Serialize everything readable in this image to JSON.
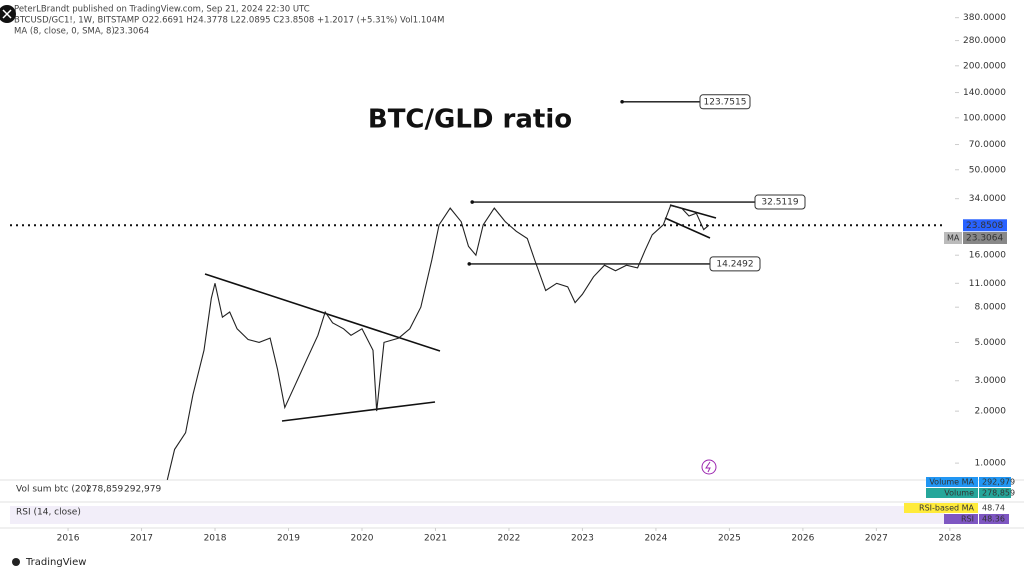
{
  "header": {
    "publisher": "PeterLBrandt published on TradingView.com, Sep 21, 2024 22:30 UTC",
    "symbol_line": "BTCUSD/GC1!, 1W, BITSTAMP  O22.6691  H24.3778  L22.0895  C23.8508  +1.2017 (+5.31%)  Vol1.104M",
    "ma_line": "MA (8, close, 0, SMA, 8)",
    "ma_line_value": 23.3064
  },
  "chart_data": {
    "type": "line",
    "title": "BTC/GLD ratio",
    "log_scale": true,
    "x": [
      2017.35,
      2017.45,
      2017.6,
      2017.7,
      2017.85,
      2017.95,
      2018.0,
      2018.1,
      2018.2,
      2018.3,
      2018.45,
      2018.6,
      2018.75,
      2018.85,
      2018.95,
      2019.1,
      2019.25,
      2019.4,
      2019.5,
      2019.6,
      2019.75,
      2019.85,
      2020.0,
      2020.15,
      2020.2,
      2020.3,
      2020.5,
      2020.65,
      2020.8,
      2020.95,
      2021.05,
      2021.2,
      2021.35,
      2021.45,
      2021.55,
      2021.65,
      2021.8,
      2021.95,
      2022.1,
      2022.25,
      2022.35,
      2022.5,
      2022.65,
      2022.8,
      2022.9,
      2023.0,
      2023.15,
      2023.3,
      2023.45,
      2023.6,
      2023.75,
      2023.85,
      2023.95,
      2024.1,
      2024.2,
      2024.35,
      2024.45,
      2024.55,
      2024.65,
      2024.72
    ],
    "series": [
      {
        "name": "BTCUSD/GC1!",
        "color": "#222222",
        "values": [
          0.8,
          1.2,
          1.5,
          2.5,
          4.5,
          9,
          11,
          7,
          7.5,
          6,
          5.2,
          5.0,
          5.3,
          3.5,
          2.1,
          2.9,
          4,
          5.5,
          7.5,
          6.5,
          6,
          5.5,
          6,
          4.5,
          2.0,
          5,
          5.3,
          6,
          8,
          15,
          24,
          30,
          25,
          18,
          16,
          24,
          30,
          25,
          22,
          20,
          15,
          10,
          11,
          10.5,
          8.5,
          9.5,
          12,
          14,
          13,
          14,
          13.5,
          17,
          21,
          24,
          31,
          30,
          27,
          28,
          22.5,
          23.85
        ]
      }
    ],
    "xlim": [
      2015.21,
      2028.07
    ],
    "xticks": [
      2016,
      2017,
      2018,
      2019,
      2020,
      2021,
      2022,
      2023,
      2024,
      2025,
      2026,
      2027,
      2028
    ],
    "ylim": [
      0.82,
      450
    ],
    "yticks": [
      {
        "value": 1,
        "label": "1.0000"
      },
      {
        "value": 2,
        "label": "2.0000"
      },
      {
        "value": 3,
        "label": "3.0000"
      },
      {
        "value": 5,
        "label": "5.0000"
      },
      {
        "value": 8,
        "label": "8.0000"
      },
      {
        "value": 11,
        "label": "11.0000"
      },
      {
        "value": 16,
        "label": "16.0000"
      },
      {
        "value": 34,
        "label": "34.0000"
      },
      {
        "value": 50,
        "label": "50.0000"
      },
      {
        "value": 70,
        "label": "70.0000"
      },
      {
        "value": 100,
        "label": "100.0000"
      },
      {
        "value": 140,
        "label": "140.0000"
      },
      {
        "value": 200,
        "label": "200.0000"
      },
      {
        "value": 280,
        "label": "280.0000"
      },
      {
        "value": 380,
        "label": "380.0000"
      }
    ],
    "horizontal_lines": [
      {
        "value": 123.7515,
        "start": 2023.54
      },
      {
        "value": 32.5119,
        "start": 2021.5
      },
      {
        "value": 14.2492,
        "start": 2021.46
      }
    ],
    "last_price": 23.8508,
    "last_price_color": "#2962ff",
    "ma_tag": "MA",
    "ma_value": 23.3064,
    "volume_pane": {
      "label": "Vol sum btc (20)",
      "volume": {
        "value": 278859,
        "label": "278,859"
      },
      "volume_ma": {
        "value": 292979,
        "label": "292,979"
      },
      "volume_tag": "Volume",
      "volume_ma_tag": "Volume MA"
    },
    "rsi_pane": {
      "label": "RSI (14, close)",
      "rsi": 48.36,
      "rsi_ma": 48.74,
      "rsi_tag": "RSI",
      "rsi_ma_tag": "RSI-based MA"
    }
  },
  "footer": {
    "brand": "TradingView"
  }
}
